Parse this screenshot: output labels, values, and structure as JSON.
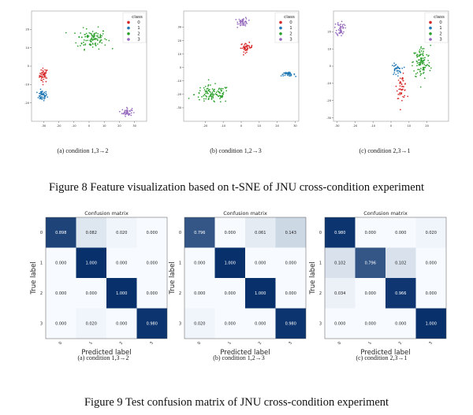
{
  "figure8": {
    "caption": "Figure 8 Feature visualization based on t-SNE of JNU cross-condition experiment",
    "subcaptions": [
      "(a) condition 1,3→2",
      "(b) condition 1,2→3",
      "(c) condition 2,3→1"
    ],
    "legend_title": "class",
    "class_labels": [
      "0",
      "1",
      "2",
      "3"
    ],
    "class_colors": [
      "#d62728",
      "#1f77b4",
      "#2ca02c",
      "#9467bd"
    ]
  },
  "figure9": {
    "caption": "Figure 9 Test confusion matrix of JNU cross-condition experiment",
    "subcaptions": [
      "(a) condition 1,3→2",
      "(b) condition 1,2→3",
      "(c) condition 2,3→1"
    ]
  },
  "chart_data": [
    {
      "type": "scatter",
      "title": "",
      "xlim": [
        -38,
        38
      ],
      "ylim": [
        -30,
        30
      ],
      "xticks": [
        -30,
        -20,
        -10,
        0,
        10,
        20,
        30
      ],
      "yticks": [
        -20,
        -10,
        0,
        10,
        20
      ],
      "series": [
        {
          "name": "0",
          "cx": -30,
          "cy": -5,
          "sx": 2.5,
          "sy": 3.5,
          "n": 45
        },
        {
          "name": "1",
          "cx": -31,
          "cy": -16,
          "sx": 3,
          "sy": 2.5,
          "n": 45
        },
        {
          "name": "2",
          "cx": 2,
          "cy": 15,
          "sx": 9,
          "sy": 5,
          "n": 110
        },
        {
          "name": "3",
          "cx": 25,
          "cy": -25,
          "sx": 3,
          "sy": 2,
          "n": 45
        }
      ]
    },
    {
      "type": "scatter",
      "title": "",
      "xlim": [
        -32,
        32
      ],
      "ylim": [
        -40,
        42
      ],
      "xticks": [
        -20,
        -10,
        0,
        10,
        20,
        30
      ],
      "yticks": [
        -30,
        -20,
        -10,
        0,
        10,
        20,
        30
      ],
      "series": [
        {
          "name": "0",
          "cx": 3,
          "cy": 15,
          "sx": 3,
          "sy": 3,
          "n": 45
        },
        {
          "name": "1",
          "cx": 26,
          "cy": -5,
          "sx": 3.5,
          "sy": 1.2,
          "n": 40
        },
        {
          "name": "2",
          "cx": -16,
          "cy": -20,
          "sx": 9,
          "sy": 6,
          "n": 110
        },
        {
          "name": "3",
          "cx": 1,
          "cy": 34,
          "sx": 2.5,
          "sy": 3,
          "n": 45
        }
      ]
    },
    {
      "type": "scatter",
      "title": "",
      "xlim": [
        -32,
        32
      ],
      "ylim": [
        -32,
        32
      ],
      "xticks": [
        -30,
        -20,
        -10,
        0,
        10,
        20
      ],
      "yticks": [
        -30,
        -20,
        -10,
        0,
        10,
        20
      ],
      "series": [
        {
          "name": "0",
          "cx": 6,
          "cy": -12,
          "sx": 2.5,
          "sy": 6,
          "n": 50
        },
        {
          "name": "1",
          "cx": 3,
          "cy": -2,
          "sx": 2.5,
          "sy": 3,
          "n": 35
        },
        {
          "name": "2",
          "cx": 17,
          "cy": 2,
          "sx": 4.5,
          "sy": 9,
          "n": 110
        },
        {
          "name": "3",
          "cx": -28,
          "cy": 22,
          "sx": 2,
          "sy": 4,
          "n": 45
        }
      ]
    },
    {
      "type": "heatmap",
      "title": "Confusion matrix",
      "xlabel": "Predicted label",
      "ylabel": "True label",
      "labels": [
        "0",
        "1",
        "2",
        "3"
      ],
      "values": [
        [
          0.898,
          0.082,
          0.02,
          0.0
        ],
        [
          0.0,
          1.0,
          0.0,
          0.0
        ],
        [
          0.0,
          0.0,
          1.0,
          0.0
        ],
        [
          0.0,
          0.02,
          0.0,
          0.98
        ]
      ]
    },
    {
      "type": "heatmap",
      "title": "Confusion matrix",
      "xlabel": "Predicted label",
      "ylabel": "True label",
      "labels": [
        "0",
        "1",
        "2",
        "3"
      ],
      "values": [
        [
          0.796,
          0.0,
          0.061,
          0.143
        ],
        [
          0.0,
          1.0,
          0.0,
          0.0
        ],
        [
          0.0,
          0.0,
          1.0,
          0.0
        ],
        [
          0.02,
          0.0,
          0.0,
          0.98
        ]
      ]
    },
    {
      "type": "heatmap",
      "title": "Confusion matrix",
      "xlabel": "Predicted label",
      "ylabel": "True label",
      "labels": [
        "0",
        "1",
        "2",
        "3"
      ],
      "values": [
        [
          0.98,
          0.0,
          0.0,
          0.02
        ],
        [
          0.102,
          0.796,
          0.102,
          0.0
        ],
        [
          0.034,
          0.0,
          0.966,
          0.0
        ],
        [
          0.0,
          0.0,
          0.0,
          1.0
        ]
      ]
    }
  ]
}
